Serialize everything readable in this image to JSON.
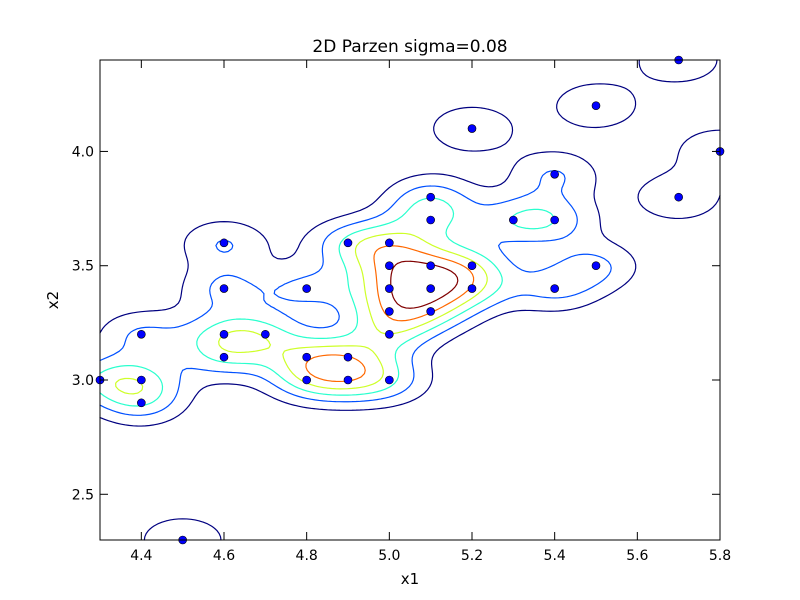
{
  "chart_data": {
    "type": "scatter",
    "title": "2D Parzen sigma=0.08",
    "xlabel": "x1",
    "ylabel": "x2",
    "xlim": [
      4.3,
      5.8
    ],
    "ylim": [
      2.3,
      4.4
    ],
    "xticks": [
      "4.4",
      "4.6",
      "4.8",
      "5.0",
      "5.2",
      "5.4",
      "5.6",
      "5.8"
    ],
    "yticks": [
      "2.5",
      "3.0",
      "3.5",
      "4.0"
    ],
    "grid": false,
    "point_color": "#0000ff",
    "points": [
      [
        4.3,
        3.0
      ],
      [
        4.4,
        3.2
      ],
      [
        4.4,
        3.0
      ],
      [
        4.4,
        2.9
      ],
      [
        4.5,
        2.3
      ],
      [
        4.6,
        3.6
      ],
      [
        4.6,
        3.4
      ],
      [
        4.6,
        3.2
      ],
      [
        4.6,
        3.1
      ],
      [
        4.7,
        3.2
      ],
      [
        4.8,
        3.4
      ],
      [
        4.8,
        3.1
      ],
      [
        4.8,
        3.0
      ],
      [
        4.9,
        3.6
      ],
      [
        4.9,
        3.1
      ],
      [
        4.9,
        3.0
      ],
      [
        5.0,
        3.6
      ],
      [
        5.0,
        3.5
      ],
      [
        5.0,
        3.4
      ],
      [
        5.0,
        3.3
      ],
      [
        5.0,
        3.2
      ],
      [
        5.0,
        3.0
      ],
      [
        5.1,
        3.8
      ],
      [
        5.1,
        3.7
      ],
      [
        5.1,
        3.5
      ],
      [
        5.1,
        3.4
      ],
      [
        5.1,
        3.3
      ],
      [
        5.2,
        4.1
      ],
      [
        5.2,
        3.5
      ],
      [
        5.2,
        3.4
      ],
      [
        5.3,
        3.7
      ],
      [
        5.4,
        3.9
      ],
      [
        5.4,
        3.7
      ],
      [
        5.4,
        3.4
      ],
      [
        5.5,
        4.2
      ],
      [
        5.5,
        3.5
      ],
      [
        5.7,
        4.4
      ],
      [
        5.7,
        3.8
      ],
      [
        5.8,
        4.0
      ]
    ],
    "contour_levels": [
      {
        "color": "#000080"
      },
      {
        "color": "#0050ff"
      },
      {
        "color": "#29ffce"
      },
      {
        "color": "#ceff29"
      },
      {
        "color": "#ff6800"
      },
      {
        "color": "#800000"
      }
    ]
  }
}
